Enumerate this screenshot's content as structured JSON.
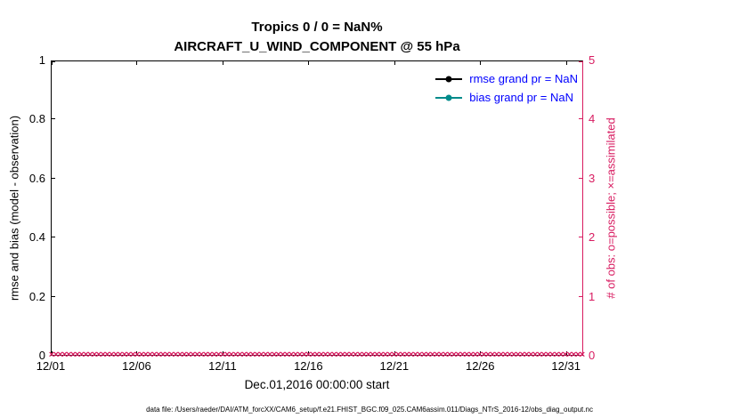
{
  "figure": {
    "title_line1": "Tropics 0 / 0 = NaN%",
    "title_line2": "AIRCRAFT_U_WIND_COMPONENT @ 55 hPa",
    "footer": "data file: /Users/raeder/DAI/ATM_forcXX/CAM6_setup/f.e21.FHIST_BGC.f09_025.CAM6assim.011/Diags_NTrS_2016-12/obs_diag_output.nc"
  },
  "colors": {
    "obs_axis_magenta": "#d81b60",
    "bias_teal": "#008b8b",
    "rmse_black": "#000000",
    "legend_text_blue": "#0000ff",
    "axis_black": "#000000"
  },
  "legend": {
    "items": [
      {
        "label": "rmse grand pr = NaN",
        "color": "#000000"
      },
      {
        "label": "bias grand pr = NaN",
        "color": "#008b8b"
      }
    ],
    "text_color": "#0000ff"
  },
  "chart_data": {
    "type": "line",
    "title": "Tropics 0 / 0 = NaN%",
    "subtitle": "AIRCRAFT_U_WIND_COMPONENT @ 55 hPa",
    "xlabel": "Dec.01,2016 00:00:00 start",
    "ylabel_left": "rmse and bias (model - observation)",
    "ylabel_right": "# of obs: o=possible; ×=assimilated",
    "x_tick_labels": [
      "12/01",
      "12/06",
      "12/11",
      "12/16",
      "12/21",
      "12/26",
      "12/31"
    ],
    "x_tick_days": [
      0,
      5,
      10,
      15,
      20,
      25,
      30
    ],
    "x_range_days": [
      0,
      31
    ],
    "y_left_ticks": [
      "0",
      "0.2",
      "0.4",
      "0.6",
      "0.8",
      "1"
    ],
    "y_left_range": [
      0,
      1
    ],
    "y_right_ticks": [
      "0",
      "1",
      "2",
      "3",
      "4",
      "5"
    ],
    "y_right_range": [
      0,
      5
    ],
    "grid": false,
    "legend_position": "top-right-inside",
    "series": [
      {
        "name": "rmse grand pr = NaN",
        "type": "line",
        "color": "#000000",
        "values": "NaN (no line plotted)"
      },
      {
        "name": "bias grand pr = NaN",
        "type": "line",
        "color": "#008b8b",
        "values": "NaN (no line plotted)"
      },
      {
        "name": "# of possible obs (o)",
        "type": "marker",
        "marker": "o",
        "color": "#d81b60",
        "constant_value": 0
      },
      {
        "name": "# of assimilated obs (x)",
        "type": "marker",
        "marker": "×",
        "color": "#d81b60",
        "constant_value": 0
      }
    ],
    "obs_marker_count": 125
  }
}
